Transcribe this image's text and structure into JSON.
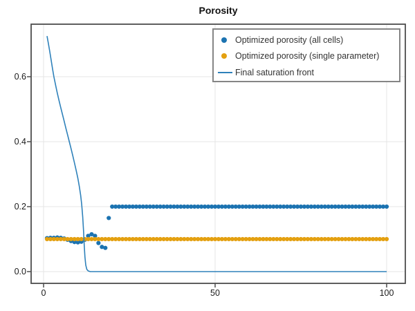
{
  "title": "Porosity",
  "legend": {
    "position": "top-right",
    "items": [
      {
        "label": "Optimized porosity (all cells)",
        "marker": "dot",
        "color_key": "all_cells"
      },
      {
        "label": "Optimized porosity (single parameter)",
        "marker": "dot",
        "color_key": "single_parameter"
      },
      {
        "label": "Final saturation front",
        "marker": "line",
        "color_key": "front_line"
      }
    ]
  },
  "colors": {
    "all_cells": "#1c73b1",
    "single_parameter": "#e4a010",
    "front_line": "#2e81ba",
    "frame": "#4d4d4d",
    "grid": "#e4e4e4",
    "tick_text": "#1a1a1a",
    "legend_border": "#858585"
  },
  "chart_data": {
    "type": "mixed",
    "title": "Porosity",
    "xlabel": "",
    "ylabel": "",
    "axes": {
      "xlim": [
        -3.63,
        105.44
      ],
      "ylim": [
        -0.0362,
        0.7617
      ],
      "xticks": [
        0,
        50,
        100
      ],
      "xtick_labels": [
        "0",
        "50",
        "100"
      ],
      "yticks": [
        0,
        0.2,
        0.4,
        0.6
      ],
      "ytick_labels": [
        "0.0",
        "0.2",
        "0.4",
        "0.6"
      ],
      "grid": true
    },
    "series": [
      {
        "name": "Optimized porosity (all cells)",
        "type": "scatter",
        "color": "#1c73b1",
        "x_start": 1,
        "x_step": 1,
        "values": [
          0.103,
          0.104,
          0.104,
          0.105,
          0.104,
          0.102,
          0.098,
          0.094,
          0.091,
          0.09,
          0.092,
          0.098,
          0.11,
          0.115,
          0.11,
          0.088,
          0.076,
          0.073,
          0.165,
          0.2,
          0.2,
          0.2,
          0.2,
          0.2,
          0.2,
          0.2,
          0.2,
          0.2,
          0.2,
          0.2,
          0.2,
          0.2,
          0.2,
          0.2,
          0.2,
          0.2,
          0.2,
          0.2,
          0.2,
          0.2,
          0.2,
          0.2,
          0.2,
          0.2,
          0.2,
          0.2,
          0.2,
          0.2,
          0.2,
          0.2,
          0.2,
          0.2,
          0.2,
          0.2,
          0.2,
          0.2,
          0.2,
          0.2,
          0.2,
          0.2,
          0.2,
          0.2,
          0.2,
          0.2,
          0.2,
          0.2,
          0.2,
          0.2,
          0.2,
          0.2,
          0.2,
          0.2,
          0.2,
          0.2,
          0.2,
          0.2,
          0.2,
          0.2,
          0.2,
          0.2,
          0.2,
          0.2,
          0.2,
          0.2,
          0.2,
          0.2,
          0.2,
          0.2,
          0.2,
          0.2,
          0.2,
          0.2,
          0.2,
          0.2,
          0.2,
          0.2,
          0.2,
          0.2,
          0.2,
          0.2
        ]
      },
      {
        "name": "Optimized porosity (single parameter)",
        "type": "scatter",
        "color": "#e4a010",
        "x_start": 1,
        "x_step": 1,
        "values": [
          0.1,
          0.1,
          0.1,
          0.1,
          0.1,
          0.1,
          0.1,
          0.1,
          0.1,
          0.1,
          0.1,
          0.1,
          0.1,
          0.1,
          0.1,
          0.1,
          0.1,
          0.1,
          0.1,
          0.1,
          0.1,
          0.1,
          0.1,
          0.1,
          0.1,
          0.1,
          0.1,
          0.1,
          0.1,
          0.1,
          0.1,
          0.1,
          0.1,
          0.1,
          0.1,
          0.1,
          0.1,
          0.1,
          0.1,
          0.1,
          0.1,
          0.1,
          0.1,
          0.1,
          0.1,
          0.1,
          0.1,
          0.1,
          0.1,
          0.1,
          0.1,
          0.1,
          0.1,
          0.1,
          0.1,
          0.1,
          0.1,
          0.1,
          0.1,
          0.1,
          0.1,
          0.1,
          0.1,
          0.1,
          0.1,
          0.1,
          0.1,
          0.1,
          0.1,
          0.1,
          0.1,
          0.1,
          0.1,
          0.1,
          0.1,
          0.1,
          0.1,
          0.1,
          0.1,
          0.1,
          0.1,
          0.1,
          0.1,
          0.1,
          0.1,
          0.1,
          0.1,
          0.1,
          0.1,
          0.1,
          0.1,
          0.1,
          0.1,
          0.1,
          0.1,
          0.1,
          0.1,
          0.1,
          0.1,
          0.1
        ]
      },
      {
        "name": "Final saturation front",
        "type": "line",
        "color": "#2e81ba",
        "points": [
          [
            1,
            0.725
          ],
          [
            1.4,
            0.703
          ],
          [
            1.8,
            0.678
          ],
          [
            2.2,
            0.652
          ],
          [
            2.6,
            0.625
          ],
          [
            3,
            0.6
          ],
          [
            3.5,
            0.574
          ],
          [
            4,
            0.55
          ],
          [
            4.5,
            0.527
          ],
          [
            5,
            0.505
          ],
          [
            5.5,
            0.484
          ],
          [
            6,
            0.463
          ],
          [
            6.5,
            0.442
          ],
          [
            7,
            0.421
          ],
          [
            7.5,
            0.4
          ],
          [
            8,
            0.379
          ],
          [
            8.5,
            0.357
          ],
          [
            9,
            0.335
          ],
          [
            9.5,
            0.312
          ],
          [
            10,
            0.287
          ],
          [
            10.4,
            0.263
          ],
          [
            10.8,
            0.235
          ],
          [
            11.1,
            0.207
          ],
          [
            11.4,
            0.168
          ],
          [
            11.65,
            0.125
          ],
          [
            11.85,
            0.08
          ],
          [
            12.05,
            0.045
          ],
          [
            12.3,
            0.02
          ],
          [
            12.6,
            0.007
          ],
          [
            13,
            0.002
          ],
          [
            13.6,
            0.0
          ],
          [
            100,
            0.0
          ]
        ]
      }
    ]
  }
}
